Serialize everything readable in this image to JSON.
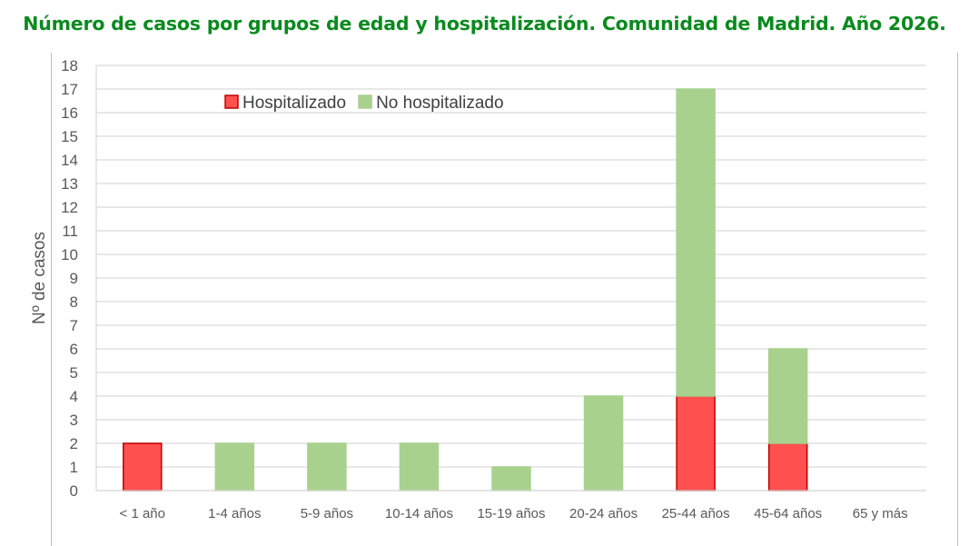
{
  "chart_data": {
    "type": "bar",
    "stacked": true,
    "title": "Número de casos por grupos de edad y hospitalización. Comunidad de Madrid. Año 2026.",
    "xlabel": "",
    "ylabel": "Nº de casos",
    "ylim": [
      0,
      18
    ],
    "yticks": [
      "0",
      "1",
      "2",
      "3",
      "4",
      "5",
      "6",
      "7",
      "8",
      "9",
      "10",
      "11",
      "12",
      "13",
      "14",
      "15",
      "16",
      "17",
      "18"
    ],
    "categories": [
      "< 1 año",
      "1-4 años",
      "5-9 años",
      "10-14 años",
      "15-19 años",
      "20-24 años",
      "25-44 años",
      "45-64 años",
      "65 y más"
    ],
    "series": [
      {
        "name": "Hospitalizado",
        "color": "#ff5050",
        "border": "#c00000",
        "values": [
          2,
          0,
          0,
          0,
          0,
          0,
          4,
          2,
          0
        ]
      },
      {
        "name": "No hospitalizado",
        "color": "#a9d18e",
        "border": "#a9d18e",
        "values": [
          0,
          2,
          2,
          2,
          1,
          4,
          13,
          4,
          0
        ]
      }
    ],
    "grid": true,
    "legend_position": "top-left",
    "colors": {
      "title": "#0a8a1e",
      "grid": "#d9d9d9",
      "axis_text": "#595959"
    }
  }
}
